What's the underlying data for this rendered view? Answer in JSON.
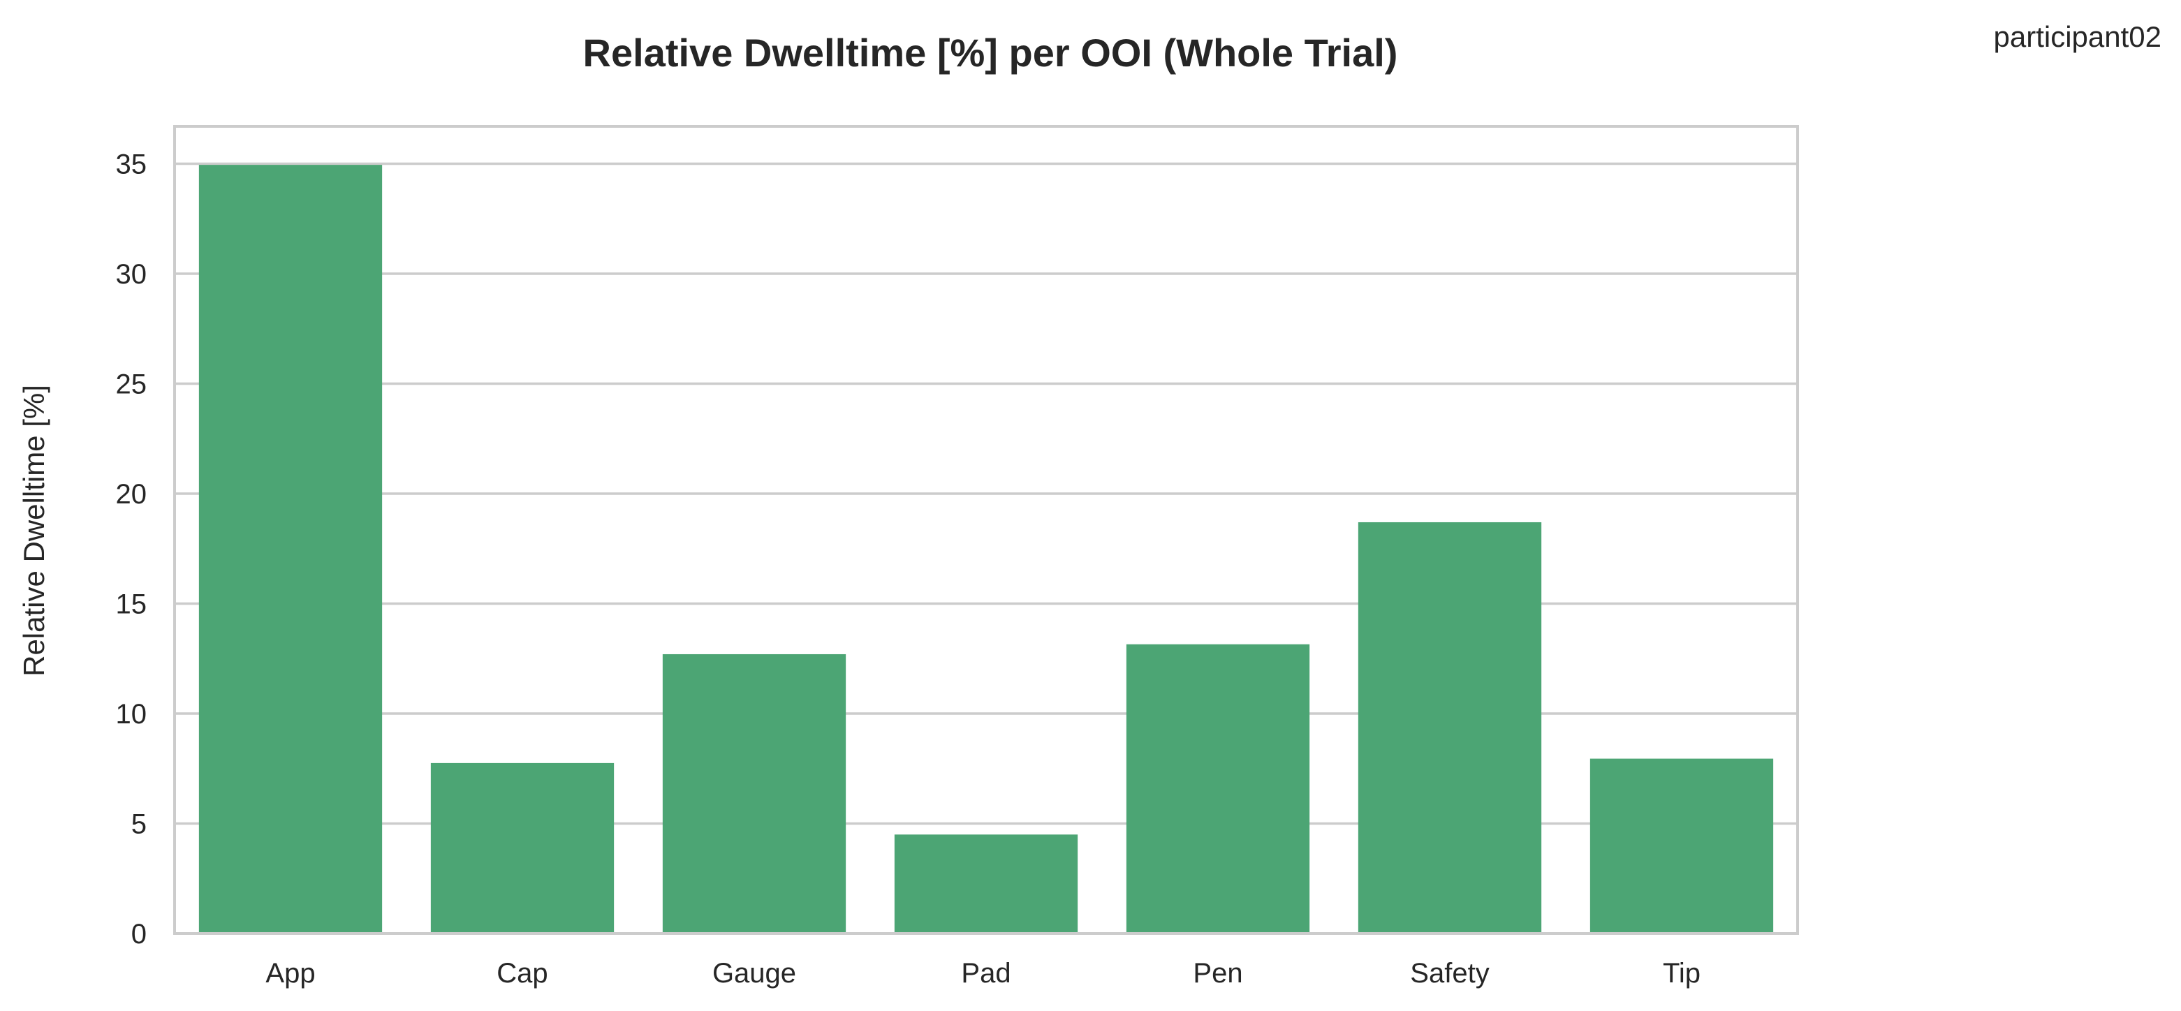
{
  "participant_label": "participant02",
  "colors": {
    "bar": "#4ca574",
    "grid": "#cccccc",
    "frame": "#cccccc",
    "text": "#262626",
    "background": "#ffffff"
  },
  "chart_data": {
    "type": "bar",
    "title": "Relative Dwelltime [%] per OOI (Whole Trial)",
    "xlabel": "",
    "ylabel": "Relative Dwelltime [%]",
    "categories": [
      "App",
      "Cap",
      "Gauge",
      "Pad",
      "Pen",
      "Safety",
      "Tip"
    ],
    "values": [
      34.95,
      7.75,
      12.7,
      4.5,
      13.15,
      18.7,
      7.95
    ],
    "ylim": [
      0,
      36.7
    ],
    "yticks": [
      0,
      5,
      10,
      15,
      20,
      25,
      30,
      35
    ],
    "grid": "horizontal",
    "legend": "none"
  }
}
